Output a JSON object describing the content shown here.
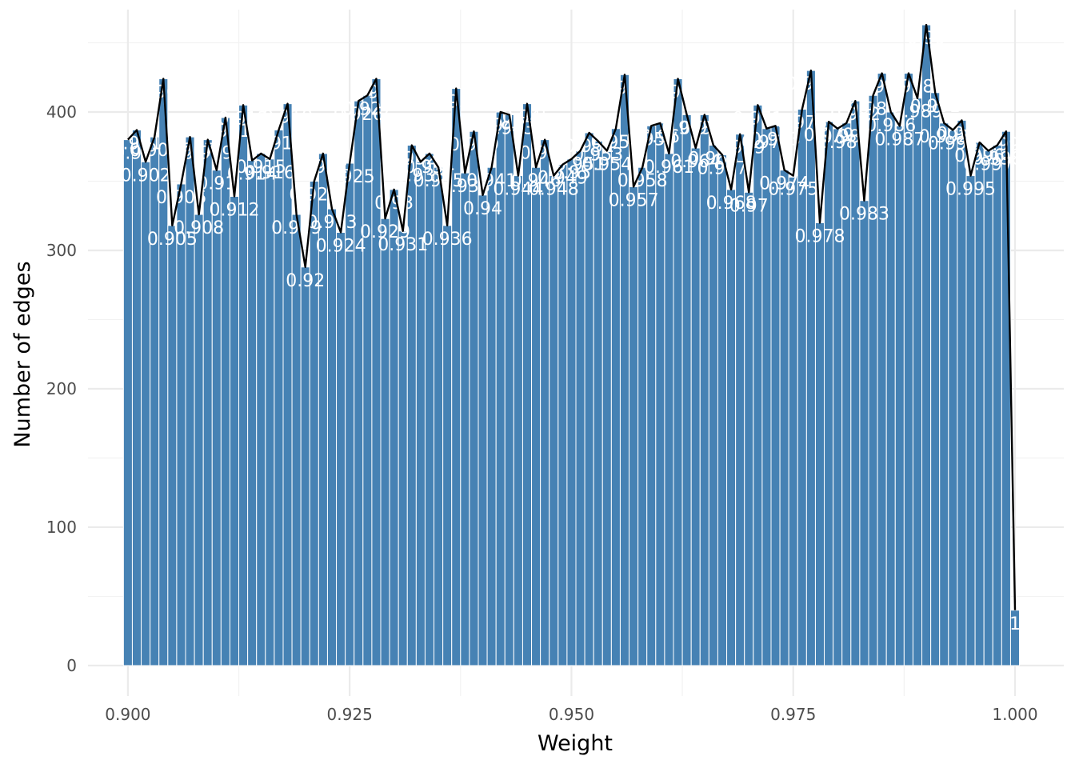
{
  "chart_data": {
    "type": "bar",
    "xlabel": "Weight",
    "ylabel": "Number of edges",
    "xlim": [
      0.8955,
      1.0055
    ],
    "ylim": [
      -22,
      474
    ],
    "x_ticks": [
      0.9,
      0.925,
      0.95,
      0.975,
      1.0
    ],
    "x_tick_labels": [
      "0.900",
      "0.925",
      "0.950",
      "0.975",
      "1.000"
    ],
    "y_ticks": [
      0,
      100,
      200,
      300,
      400
    ],
    "y_tick_labels": [
      "0",
      "100",
      "200",
      "300",
      "400"
    ],
    "grid": true,
    "legend": "none",
    "bar_color": "#4682B4",
    "line_color": "#000000",
    "label_color": "#FFFFFF",
    "overlay_line": true,
    "bin_width": 0.001,
    "x": [
      0.9,
      0.901,
      0.902,
      0.903,
      0.904,
      0.905,
      0.906,
      0.907,
      0.908,
      0.909,
      0.91,
      0.911,
      0.912,
      0.913,
      0.914,
      0.915,
      0.916,
      0.917,
      0.918,
      0.919,
      0.92,
      0.921,
      0.922,
      0.923,
      0.924,
      0.925,
      0.926,
      0.927,
      0.928,
      0.929,
      0.93,
      0.931,
      0.932,
      0.933,
      0.934,
      0.935,
      0.936,
      0.937,
      0.938,
      0.939,
      0.94,
      0.941,
      0.942,
      0.943,
      0.944,
      0.945,
      0.946,
      0.947,
      0.948,
      0.949,
      0.95,
      0.951,
      0.952,
      0.953,
      0.954,
      0.955,
      0.956,
      0.957,
      0.958,
      0.959,
      0.96,
      0.961,
      0.962,
      0.963,
      0.964,
      0.965,
      0.966,
      0.967,
      0.968,
      0.969,
      0.97,
      0.971,
      0.972,
      0.973,
      0.974,
      0.975,
      0.976,
      0.977,
      0.978,
      0.979,
      0.98,
      0.981,
      0.982,
      0.983,
      0.984,
      0.985,
      0.986,
      0.987,
      0.988,
      0.989,
      0.99,
      0.991,
      0.992,
      0.993,
      0.994,
      0.995,
      0.996,
      0.997,
      0.998,
      0.999,
      1.0
    ],
    "labels": [
      "0.9",
      "0.901",
      "0.902",
      "0.903",
      "0.904",
      "0.905",
      "0.906",
      "0.907",
      "0.908",
      "0.909",
      "0.91",
      "0.911",
      "0.912",
      "0.913",
      "0.914",
      "0.915",
      "0.916",
      "0.917",
      "0.918",
      "0.919",
      "0.92",
      "0.921",
      "0.922",
      "0.923",
      "0.924",
      "0.925",
      "0.926",
      "0.927",
      "0.928",
      "0.929",
      "0.93",
      "0.931",
      "0.932",
      "0.933",
      "0.934",
      "0.935",
      "0.936",
      "0.937",
      "0.938",
      "0.939",
      "0.94",
      "0.941",
      "0.942",
      "0.943",
      "0.944",
      "0.945",
      "0.946",
      "0.947",
      "0.948",
      "0.949",
      "0.95",
      "0.951",
      "0.952",
      "0.953",
      "0.954",
      "0.955",
      "0.956",
      "0.957",
      "0.958",
      "0.959",
      "0.96",
      "0.961",
      "0.962",
      "0.963",
      "0.964",
      "0.965",
      "0.966",
      "0.967",
      "0.968",
      "0.969",
      "0.97",
      "0.971",
      "0.972",
      "0.973",
      "0.974",
      "0.975",
      "0.976",
      "0.977",
      "0.978",
      "0.979",
      "0.98",
      "0.981",
      "0.982",
      "0.983",
      "0.984",
      "0.985",
      "0.986",
      "0.987",
      "0.988",
      "0.989",
      "0.99",
      "0.991",
      "0.992",
      "0.993",
      "0.994",
      "0.995",
      "0.996",
      "0.997",
      "0.998",
      "0.999",
      "1"
    ],
    "values": [
      380,
      387,
      364,
      382,
      424,
      318,
      348,
      382,
      326,
      380,
      358,
      396,
      339,
      405,
      365,
      370,
      366,
      387,
      406,
      326,
      288,
      350,
      370,
      330,
      313,
      363,
      408,
      412,
      424,
      323,
      344,
      314,
      376,
      364,
      370,
      360,
      318,
      417,
      356,
      386,
      340,
      360,
      400,
      398,
      354,
      406,
      360,
      380,
      354,
      362,
      366,
      372,
      385,
      379,
      372,
      388,
      427,
      346,
      360,
      390,
      392,
      370,
      424,
      398,
      374,
      398,
      376,
      369,
      344,
      384,
      342,
      405,
      388,
      390,
      358,
      354,
      402,
      430,
      320,
      393,
      388,
      392,
      408,
      336,
      412,
      428,
      400,
      390,
      428,
      410,
      463,
      414,
      392,
      387,
      394,
      354,
      378,
      372,
      376,
      386,
      40
    ]
  }
}
